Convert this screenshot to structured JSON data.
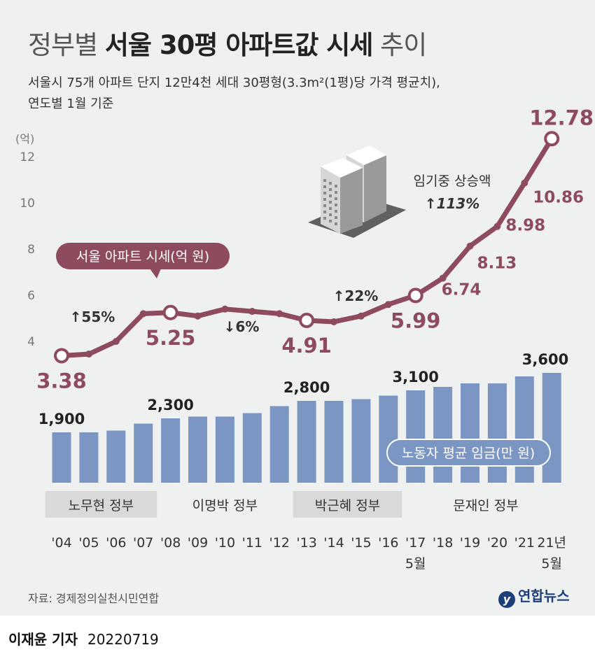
{
  "header": {
    "title_part1": "정부별",
    "title_bold": "서울 30평 아파트값 시세",
    "title_part2": "추이",
    "subtitle_line1": "서울시 75개 아파트 단지 12만4천 세대 30평형(3.3m²(1평)당 가격 평균치),",
    "subtitle_line2": "연도별 1월 기준"
  },
  "chart_data": {
    "type": "line+bar",
    "x": [
      "'04",
      "'05",
      "'06",
      "'07",
      "'08",
      "'09",
      "'10",
      "'11",
      "'12",
      "'13",
      "'14",
      "'15",
      "'16",
      "'17 5월",
      "'18",
      "'19",
      "'20",
      "'21",
      "21년 5월"
    ],
    "x_labels_line1": [
      "'04",
      "'05",
      "'06",
      "'07",
      "'08",
      "'09",
      "'10",
      "'11",
      "'12",
      "'13",
      "'14",
      "'15",
      "'16",
      "'17",
      "'18",
      "'19",
      "'20",
      "'21",
      "21년"
    ],
    "x_labels_line2": [
      "",
      "",
      "",
      "",
      "",
      "",
      "",
      "",
      "",
      "",
      "",
      "",
      "",
      "5월",
      "",
      "",
      "",
      "",
      "5월"
    ],
    "y_unit": "(억)",
    "y_ticks": [
      4,
      6,
      8,
      10,
      12
    ],
    "ylim": [
      3,
      13
    ],
    "series": [
      {
        "name": "서울 아파트 시세(억 원)",
        "type": "line",
        "color": "#8e4b5d",
        "values": [
          3.38,
          3.45,
          4.0,
          5.2,
          5.25,
          5.1,
          5.4,
          5.3,
          5.2,
          4.91,
          4.85,
          5.1,
          5.6,
          5.99,
          6.74,
          8.13,
          8.98,
          10.86,
          12.78
        ],
        "labeled_values": [
          {
            "index": 0,
            "text": "3.38"
          },
          {
            "index": 4,
            "text": "5.25"
          },
          {
            "index": 9,
            "text": "4.91"
          },
          {
            "index": 13,
            "text": "5.99"
          },
          {
            "index": 14,
            "text": "6.74"
          },
          {
            "index": 15,
            "text": "8.13"
          },
          {
            "index": 16,
            "text": "8.98"
          },
          {
            "index": 17,
            "text": "10.86"
          },
          {
            "index": 18,
            "text": "12.78"
          }
        ],
        "open_markers": [
          0,
          4,
          9,
          13,
          18
        ]
      },
      {
        "name": "노동자 평균 임금(만 원)",
        "type": "bar",
        "color": "#7b96c2",
        "values": [
          1900,
          1900,
          1950,
          2150,
          2300,
          2350,
          2350,
          2450,
          2650,
          2800,
          2800,
          2850,
          2950,
          3100,
          3200,
          3300,
          3300,
          3500,
          3600
        ],
        "labeled_values": [
          {
            "index": 0,
            "text": "1,900"
          },
          {
            "index": 4,
            "text": "2,300"
          },
          {
            "index": 9,
            "text": "2,800"
          },
          {
            "index": 13,
            "text": "3,100"
          },
          {
            "index": 18,
            "text": "3,600"
          }
        ]
      }
    ],
    "annotations": [
      {
        "text": "↑55%",
        "near_index": 2
      },
      {
        "text": "↓6%",
        "near_index": 6
      },
      {
        "text": "↑22%",
        "near_index": 11
      },
      {
        "text": "임기중 상승액",
        "near_index": 16
      },
      {
        "text": "↑113%",
        "near_index": 16
      }
    ],
    "eras": [
      {
        "name": "노무현 정부",
        "start": 0,
        "end": 3
      },
      {
        "name": "이명박 정부",
        "start": 4,
        "end": 8
      },
      {
        "name": "박근혜 정부",
        "start": 9,
        "end": 12
      },
      {
        "name": "문재인 정부",
        "start": 13,
        "end": 18
      }
    ],
    "colors": {
      "line": "#8e4b5d",
      "bar": "#7b96c2",
      "era_shade": "#d9d9d9",
      "background": "#eff0f0"
    }
  },
  "footer": {
    "source": "자료: 경제정의실천시민연합",
    "logo": "연합뉴스",
    "reporter": "이재윤 기자",
    "date": "20220719"
  }
}
